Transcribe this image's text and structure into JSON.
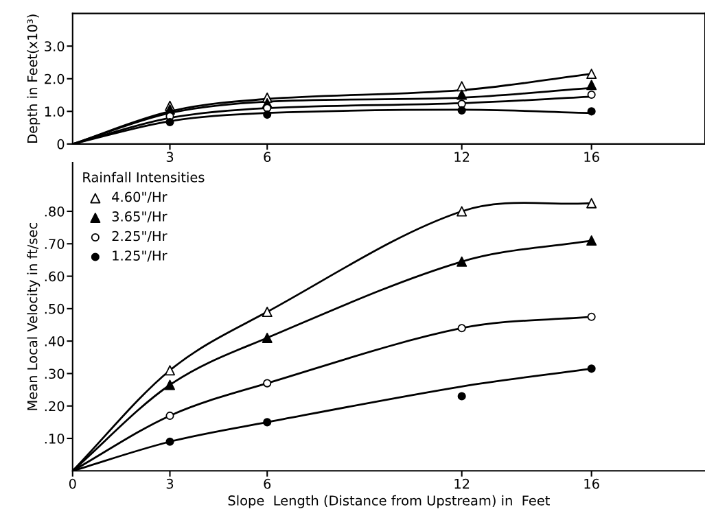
{
  "chart_data": [
    {
      "type": "line",
      "ylabel": "Depth in Feet(x10³)",
      "xlim": [
        0,
        19.5
      ],
      "ylim": [
        0,
        4.0
      ],
      "xticks": [
        3,
        6,
        12,
        16
      ],
      "yticks": [
        0,
        {
          "value": 1.0,
          "label": "1.0"
        },
        {
          "value": 2.0,
          "label": "2.0"
        },
        {
          "value": 3.0,
          "label": "3.0"
        }
      ],
      "grid": false,
      "legend": false,
      "series": [
        {
          "color": "#000000",
          "marker": "none",
          "x": [
            0,
            3,
            6,
            12,
            16
          ],
          "values": [
            0,
            1.0,
            1.38,
            1.65,
            2.15
          ]
        },
        {
          "color": "#000000",
          "marker": "none",
          "x": [
            0,
            3,
            6,
            12,
            16
          ],
          "values": [
            0,
            0.95,
            1.3,
            1.42,
            1.72
          ]
        },
        {
          "color": "#000000",
          "marker": "none",
          "x": [
            0,
            3,
            6,
            12,
            16
          ],
          "values": [
            0,
            0.8,
            1.1,
            1.25,
            1.45
          ]
        },
        {
          "color": "#000000",
          "marker": "none",
          "x": [
            0,
            3,
            6,
            12,
            16
          ],
          "values": [
            0,
            0.7,
            0.95,
            1.05,
            0.95
          ]
        },
        {
          "type": "scatter",
          "color": "#ffffff",
          "marker": "triangle",
          "x": [
            3,
            6,
            12,
            16
          ],
          "values": [
            1.17,
            1.42,
            1.77,
            2.15
          ]
        },
        {
          "type": "scatter",
          "color": "#000000",
          "marker": "triangle",
          "x": [
            3,
            6,
            12,
            16
          ],
          "values": [
            1.06,
            1.25,
            1.51,
            1.81
          ]
        },
        {
          "type": "scatter",
          "color": "#ffffff",
          "marker": "circle",
          "x": [
            3,
            6,
            12,
            16
          ],
          "values": [
            0.85,
            1.1,
            1.23,
            1.51
          ]
        },
        {
          "type": "scatter",
          "color": "#000000",
          "marker": "circle",
          "x": [
            3,
            6,
            12,
            16
          ],
          "values": [
            0.67,
            0.9,
            1.03,
            1.0
          ]
        }
      ]
    },
    {
      "type": "line",
      "xlabel": "Slope  Length (Distance from Upstream) in  Feet",
      "ylabel": "Mean Local Velocity in ft/sec",
      "legend_title": "Rainfall Intensities",
      "xlim": [
        0,
        19.5
      ],
      "ylim": [
        0,
        0.95
      ],
      "xticks": [
        0,
        3,
        6,
        12,
        16
      ],
      "yticks": [
        {
          "value": 0.1,
          "label": ".10"
        },
        {
          "value": 0.2,
          "label": ".20"
        },
        {
          "value": 0.3,
          "label": ".30"
        },
        {
          "value": 0.4,
          "label": ".40"
        },
        {
          "value": 0.5,
          "label": ".50"
        },
        {
          "value": 0.6,
          "label": ".60"
        },
        {
          "value": 0.7,
          "label": ".70"
        },
        {
          "value": 0.8,
          "label": ".80"
        }
      ],
      "grid": false,
      "legend": "top left",
      "series": [
        {
          "color": "#000000",
          "marker": "none",
          "x": [
            0,
            3,
            6,
            12,
            16
          ],
          "values": [
            0,
            0.31,
            0.49,
            0.8,
            0.825
          ]
        },
        {
          "color": "#000000",
          "marker": "none",
          "x": [
            0,
            3,
            6,
            12,
            16
          ],
          "values": [
            0,
            0.265,
            0.41,
            0.645,
            0.71
          ]
        },
        {
          "color": "#000000",
          "marker": "none",
          "x": [
            0,
            3,
            6,
            12,
            16
          ],
          "values": [
            0,
            0.17,
            0.27,
            0.44,
            0.475
          ]
        },
        {
          "color": "#000000",
          "marker": "none",
          "x": [
            0,
            3,
            6,
            12,
            16
          ],
          "values": [
            0,
            0.09,
            0.15,
            0.26,
            0.315
          ]
        },
        {
          "type": "scatter",
          "name": "4.60\"/Hr",
          "color": "#ffffff",
          "marker": "triangle",
          "x": [
            3,
            6,
            12,
            16
          ],
          "values": [
            0.31,
            0.49,
            0.8,
            0.825
          ]
        },
        {
          "type": "scatter",
          "name": "3.65\"/Hr",
          "color": "#000000",
          "marker": "triangle",
          "x": [
            3,
            6,
            12,
            16
          ],
          "values": [
            0.265,
            0.41,
            0.645,
            0.71
          ]
        },
        {
          "type": "scatter",
          "name": "2.25\"/Hr",
          "color": "#ffffff",
          "marker": "circle",
          "x": [
            3,
            6,
            12,
            16
          ],
          "values": [
            0.17,
            0.27,
            0.44,
            0.475
          ]
        },
        {
          "type": "scatter",
          "name": "1.25\"/Hr",
          "color": "#000000",
          "marker": "circle",
          "x": [
            3,
            6,
            12,
            16
          ],
          "values": [
            0.09,
            0.15,
            0.23,
            0.315
          ]
        }
      ]
    }
  ]
}
